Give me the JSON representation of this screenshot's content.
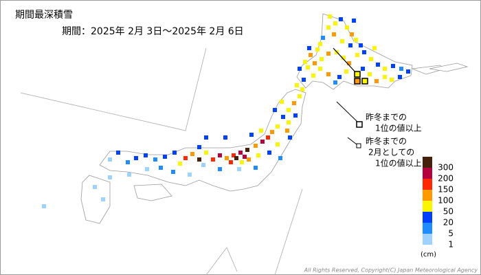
{
  "header": {
    "title": "期間最深積雪",
    "period": "期間：2025年 2月 3日～2025年 2月 6日"
  },
  "legend": {
    "items": [
      {
        "label": "300",
        "color": "#45200d"
      },
      {
        "label": "200",
        "color": "#b4003c"
      },
      {
        "label": "150",
        "color": "#ff2800"
      },
      {
        "label": "100",
        "color": "#ff9900"
      },
      {
        "label": "50",
        "color": "#faf500"
      },
      {
        "label": "20",
        "color": "#0041ff"
      },
      {
        "label": "5",
        "color": "#218cff"
      },
      {
        "label": "1",
        "color": "#a0d2ff"
      }
    ],
    "unit": "(cm)"
  },
  "notes": [
    {
      "lines": [
        "昨冬までの",
        "1位の値以上"
      ]
    },
    {
      "lines": [
        "昨冬までの",
        "2月としての",
        "1位の値以上"
      ]
    }
  ],
  "footer": {
    "copyright": "All Rights Reserved, Copyright(C) Japan Meteorological Agency"
  }
}
